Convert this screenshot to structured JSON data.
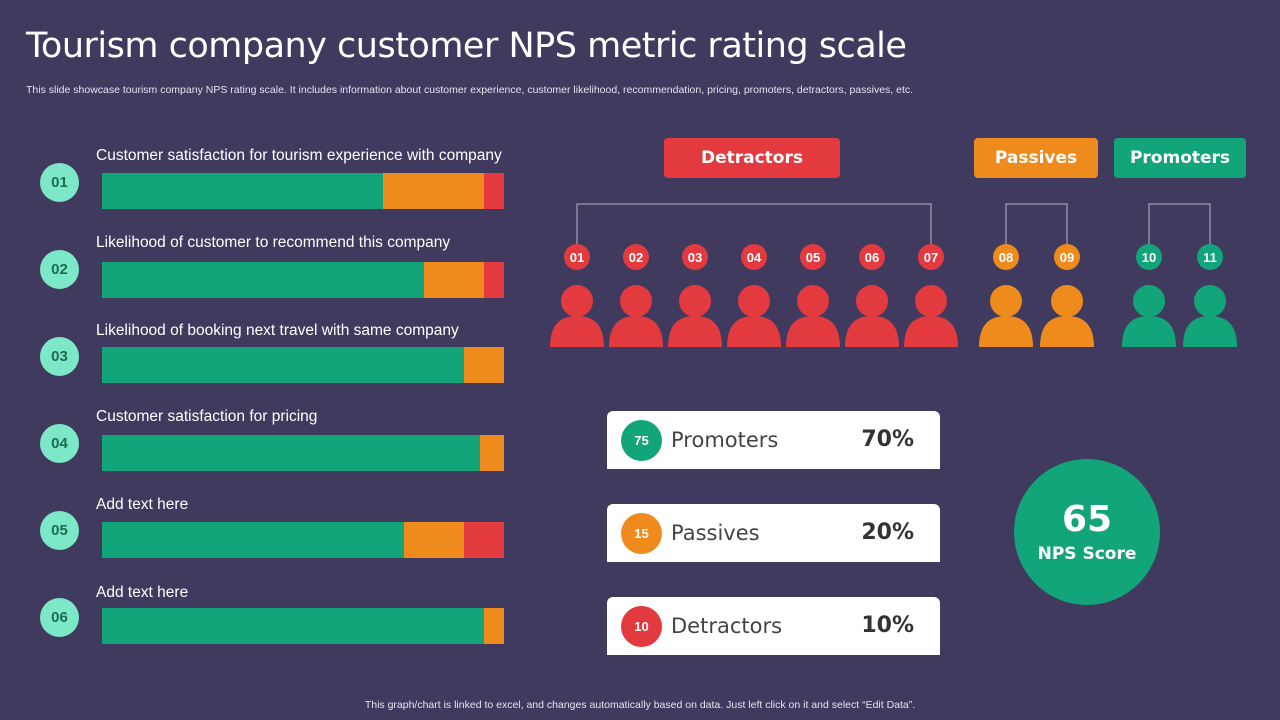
{
  "header": {
    "title": "Tourism company customer NPS metric rating scale",
    "subtitle": "This slide showcase tourism company NPS rating scale. It includes information about customer experience, customer likelihood, recommendation, pricing, promoters, detractors, passives, etc."
  },
  "footer": "This graph/chart is linked to excel,  and changes automatically based on data. Just left click on it and select “Edit Data”.",
  "colors": {
    "promoters": "#13a57a",
    "passives": "#ef8a1c",
    "detractors": "#e33a3f",
    "background": "#3f3a5e"
  },
  "chart_data": {
    "type": "bar",
    "orientation": "horizontal",
    "stacked": true,
    "categories": [
      "Customer satisfaction for tourism experience with company",
      "Likelihood of customer to recommend this company",
      "Likelihood of booking next travel with same company",
      "Customer satisfaction for pricing",
      "Add text here",
      "Add text here"
    ],
    "row_numbers": [
      "01",
      "02",
      "03",
      "04",
      "05",
      "06"
    ],
    "series": [
      {
        "color": "#13a57a",
        "values": [
          70,
          80,
          90,
          94,
          75,
          95
        ]
      },
      {
        "color": "#ef8a1c",
        "values": [
          25,
          15,
          10,
          6,
          15,
          5
        ]
      },
      {
        "color": "#e33a3f",
        "values": [
          5,
          5,
          0,
          0,
          10,
          0
        ]
      }
    ],
    "xlim": [
      0,
      100
    ]
  },
  "scale": {
    "groups": [
      {
        "name": "Detractors",
        "color": "#e33a3f",
        "numbers": [
          "01",
          "02",
          "03",
          "04",
          "05",
          "06",
          "07"
        ]
      },
      {
        "name": "Passives",
        "color": "#ef8a1c",
        "numbers": [
          "08",
          "09"
        ]
      },
      {
        "name": "Promoters",
        "color": "#13a57a",
        "numbers": [
          "10",
          "11"
        ]
      }
    ]
  },
  "summary": [
    {
      "badge": "75",
      "label": "Promoters",
      "percent": "70%",
      "color": "#13a57a"
    },
    {
      "badge": "15",
      "label": "Passives",
      "percent": "20%",
      "color": "#ef8a1c"
    },
    {
      "badge": "10",
      "label": "Detractors",
      "percent": "10%",
      "color": "#e33a3f"
    }
  ],
  "nps": {
    "value": "65",
    "label": "NPS Score"
  }
}
